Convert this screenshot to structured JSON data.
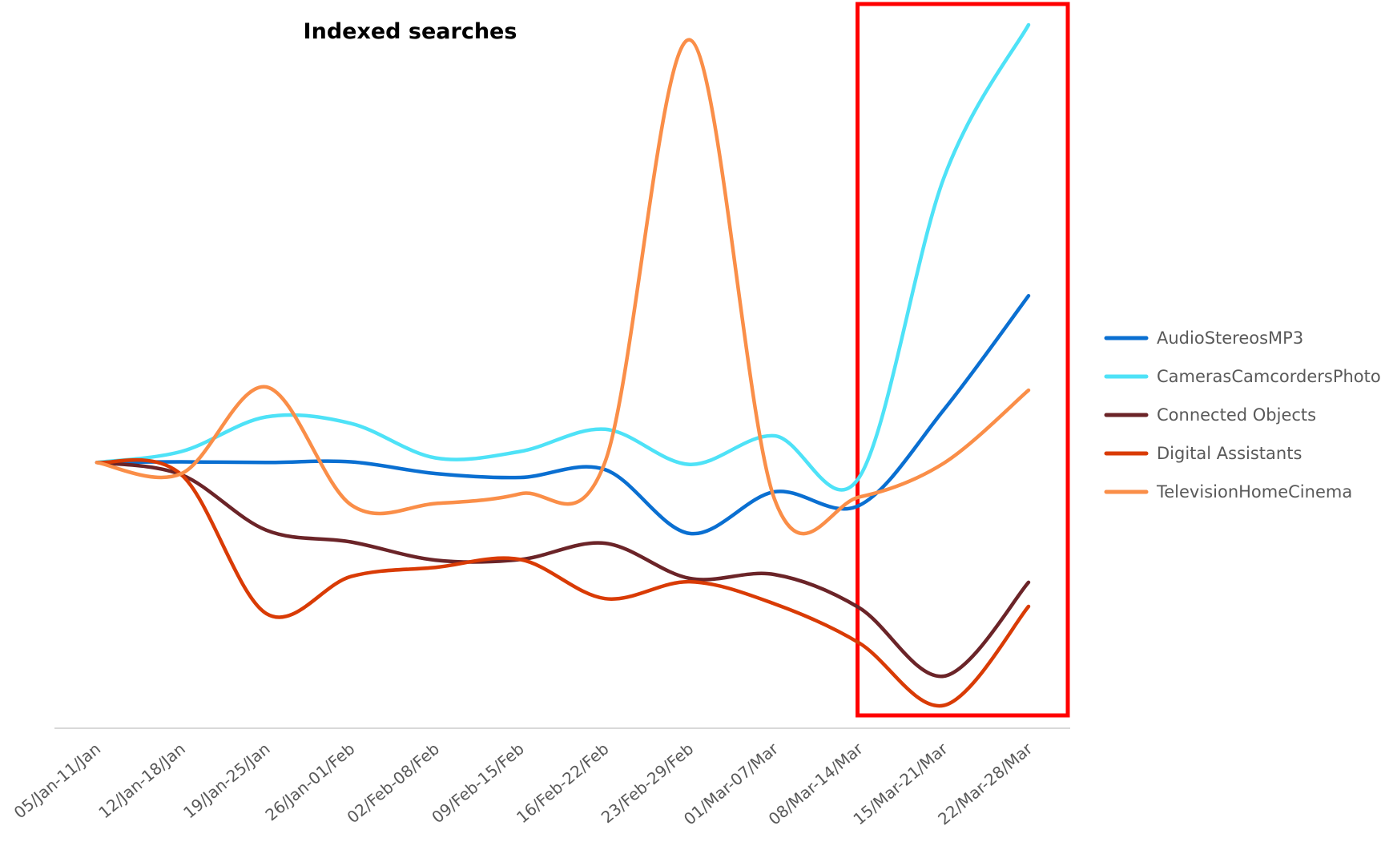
{
  "chart_data": {
    "type": "line",
    "title": "Indexed searches",
    "xlabel": "",
    "ylabel": "",
    "categories": [
      "05/Jan-11/Jan",
      "12/Jan-18/Jan",
      "19/Jan-25/Jan",
      "26/Jan-01/Feb",
      "02/Feb-08/Feb",
      "09/Feb-15/Feb",
      "16/Feb-22/Feb",
      "23/Feb-29/Feb",
      "01/Mar-07/Mar",
      "08/Mar-14/Mar",
      "15/Mar-21/Mar",
      "22/Mar-28/Mar"
    ],
    "ylim": [
      0,
      100
    ],
    "y_axis_visible": false,
    "grid": false,
    "smooth": true,
    "legend_position": "right",
    "highlight": {
      "from_category": "08/Mar-14/Mar",
      "to_category": "22/Mar-28/Mar",
      "color": "#ff0000"
    },
    "series": [
      {
        "name": "AudioStereosMP3",
        "color": "#0a6fd1",
        "values": [
          40.8,
          40.9,
          40.8,
          40.9,
          39.1,
          38.5,
          39.7,
          29.9,
          36.3,
          34.2,
          48.9,
          66.4
        ]
      },
      {
        "name": "CamerasCamcordersPhoto",
        "color": "#4ee2f7",
        "values": [
          40.8,
          42.5,
          47.8,
          46.8,
          41.5,
          42.5,
          45.9,
          40.5,
          44.9,
          38.5,
          84.5,
          108.0
        ]
      },
      {
        "name": "Connected Objects",
        "color": "#6b2428",
        "values": [
          40.8,
          38.9,
          30.4,
          28.6,
          25.8,
          25.9,
          28.4,
          23.0,
          23.6,
          18.5,
          8.0,
          22.4
        ]
      },
      {
        "name": "Digital Assistants",
        "color": "#d93b05",
        "values": [
          40.8,
          38.9,
          17.6,
          23.3,
          24.7,
          25.9,
          19.9,
          22.5,
          19.1,
          13.1,
          3.5,
          18.7
        ]
      },
      {
        "name": "TelevisionHomeCinema",
        "color": "#fa8e48",
        "values": [
          40.8,
          39.1,
          52.4,
          34.3,
          34.5,
          36.0,
          40.9,
          105.7,
          35.2,
          35.5,
          40.7,
          51.9
        ]
      }
    ]
  }
}
